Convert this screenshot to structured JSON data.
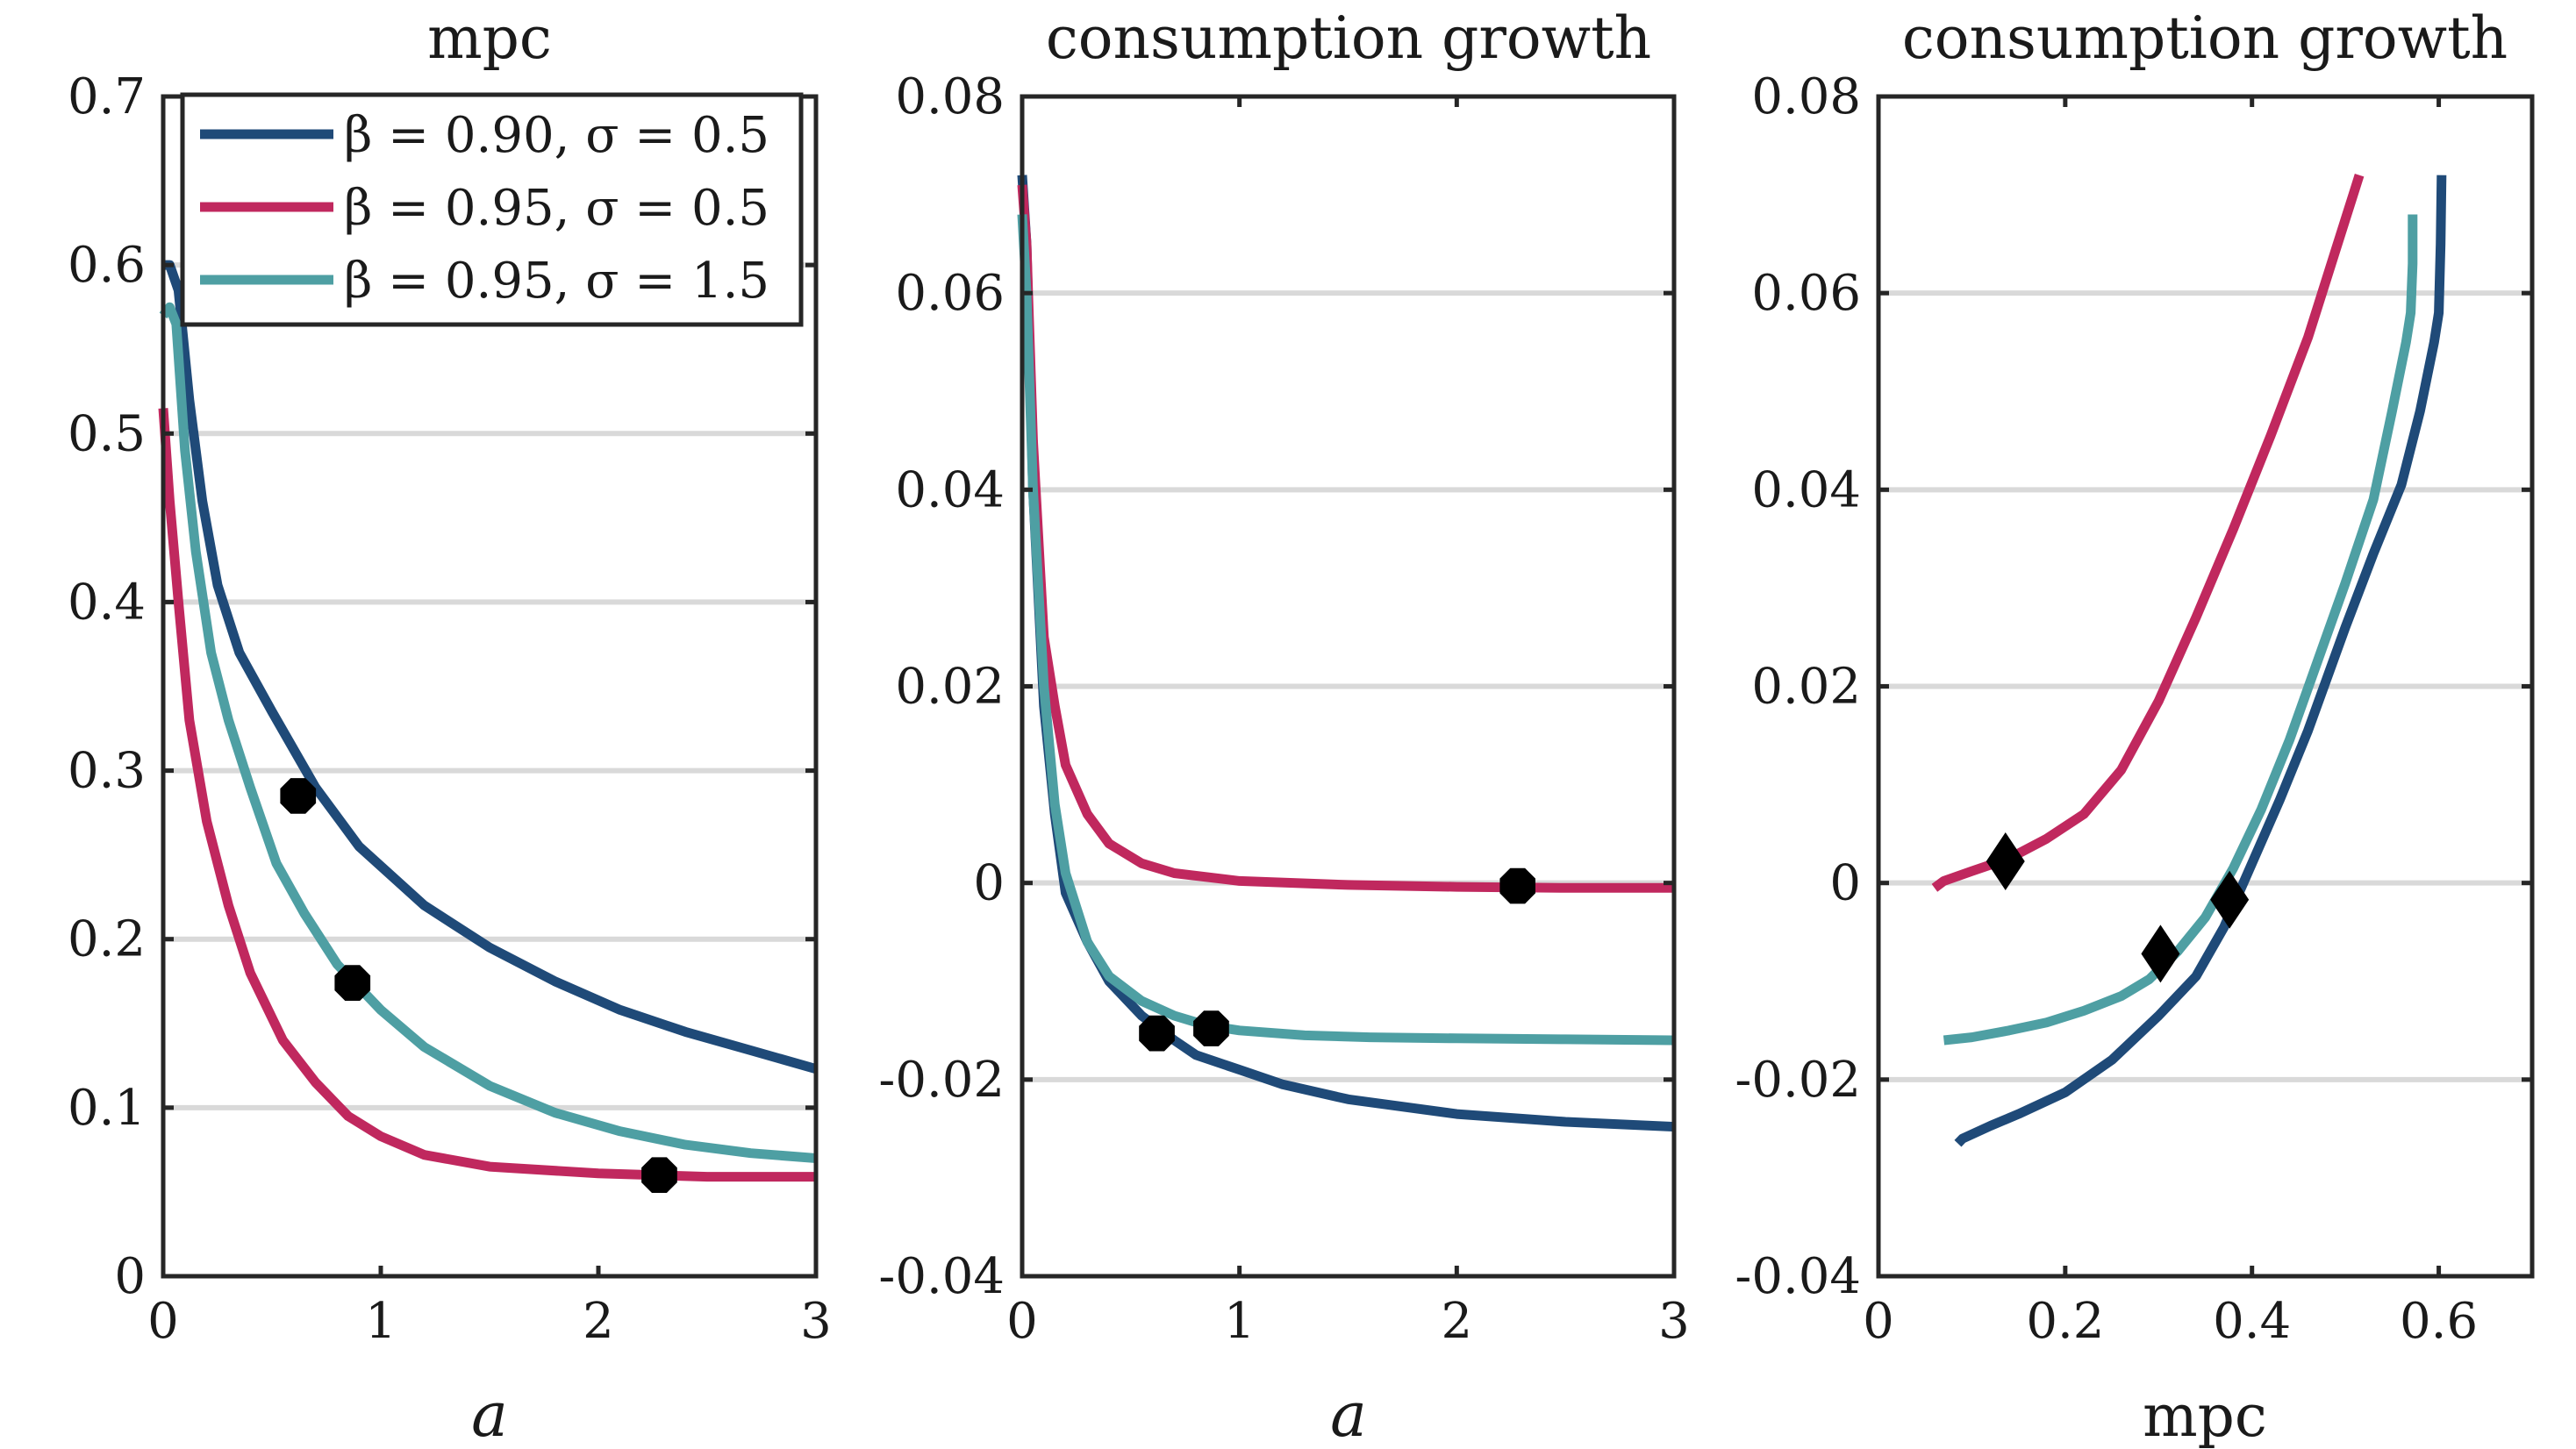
{
  "colors": {
    "navy": "#1f4a78",
    "crimson": "#c0285e",
    "teal": "#4e9fa3",
    "marker": "#000000",
    "grid": "#d9d9d9",
    "frame": "#262626"
  },
  "legend": {
    "placement": "top-right of first panel",
    "entries": [
      {
        "series": "beta090_sigma05",
        "label": "β = 0.90, σ = 0.5",
        "color": "#1f4a78"
      },
      {
        "series": "beta095_sigma05",
        "label": "β = 0.95, σ = 0.5",
        "color": "#c0285e"
      },
      {
        "series": "beta095_sigma15",
        "label": "β = 0.95, σ = 1.5",
        "color": "#4e9fa3"
      }
    ]
  },
  "chart_data": [
    {
      "type": "line",
      "title": "mpc",
      "xlabel": "a",
      "ylabel": "",
      "xlim": [
        0,
        3
      ],
      "ylim": [
        0,
        0.7
      ],
      "xticks": [
        0,
        1,
        2,
        3
      ],
      "xtick_labels": [
        "0",
        "1",
        "2",
        "3"
      ],
      "yticks": [
        0,
        0.1,
        0.2,
        0.3,
        0.4,
        0.5,
        0.6,
        0.7
      ],
      "ytick_labels": [
        "0",
        "0.1",
        "0.2",
        "0.3",
        "0.4",
        "0.5",
        "0.6",
        "0.7"
      ],
      "grid": "horizontal",
      "series": [
        {
          "id": "beta090_sigma05",
          "color": "#1f4a78",
          "points": [
            [
              0.0,
              0.6
            ],
            [
              0.03,
              0.6
            ],
            [
              0.07,
              0.585
            ],
            [
              0.12,
              0.52
            ],
            [
              0.18,
              0.46
            ],
            [
              0.25,
              0.41
            ],
            [
              0.35,
              0.37
            ],
            [
              0.5,
              0.335
            ],
            [
              0.7,
              0.29
            ],
            [
              0.9,
              0.255
            ],
            [
              1.2,
              0.22
            ],
            [
              1.5,
              0.195
            ],
            [
              1.8,
              0.175
            ],
            [
              2.1,
              0.158
            ],
            [
              2.4,
              0.145
            ],
            [
              2.7,
              0.134
            ],
            [
              3.0,
              0.123
            ]
          ],
          "markers": [
            [
              0.62,
              0.285
            ]
          ]
        },
        {
          "id": "beta095_sigma05",
          "color": "#c0285e",
          "points": [
            [
              0.0,
              0.515
            ],
            [
              0.03,
              0.46
            ],
            [
              0.07,
              0.4
            ],
            [
              0.12,
              0.33
            ],
            [
              0.2,
              0.27
            ],
            [
              0.3,
              0.22
            ],
            [
              0.4,
              0.18
            ],
            [
              0.55,
              0.14
            ],
            [
              0.7,
              0.115
            ],
            [
              0.85,
              0.095
            ],
            [
              1.0,
              0.083
            ],
            [
              1.2,
              0.072
            ],
            [
              1.5,
              0.065
            ],
            [
              2.0,
              0.061
            ],
            [
              2.5,
              0.059
            ],
            [
              3.0,
              0.059
            ]
          ],
          "markers": [
            [
              2.28,
              0.06
            ]
          ]
        },
        {
          "id": "beta095_sigma15",
          "color": "#4e9fa3",
          "points": [
            [
              0.0,
              0.57
            ],
            [
              0.03,
              0.575
            ],
            [
              0.06,
              0.565
            ],
            [
              0.1,
              0.49
            ],
            [
              0.15,
              0.43
            ],
            [
              0.22,
              0.37
            ],
            [
              0.3,
              0.33
            ],
            [
              0.4,
              0.29
            ],
            [
              0.52,
              0.245
            ],
            [
              0.65,
              0.215
            ],
            [
              0.8,
              0.185
            ],
            [
              1.0,
              0.158
            ],
            [
              1.2,
              0.136
            ],
            [
              1.5,
              0.113
            ],
            [
              1.8,
              0.097
            ],
            [
              2.1,
              0.086
            ],
            [
              2.4,
              0.078
            ],
            [
              2.7,
              0.073
            ],
            [
              3.0,
              0.07
            ]
          ],
          "markers": [
            [
              0.87,
              0.174
            ]
          ]
        }
      ]
    },
    {
      "type": "line",
      "title": "consumption growth",
      "xlabel": "a",
      "ylabel": "",
      "xlim": [
        0,
        3
      ],
      "ylim": [
        -0.04,
        0.08
      ],
      "xticks": [
        0,
        1,
        2,
        3
      ],
      "xtick_labels": [
        "0",
        "1",
        "2",
        "3"
      ],
      "yticks": [
        -0.04,
        -0.02,
        0,
        0.02,
        0.04,
        0.06,
        0.08
      ],
      "ytick_labels": [
        "-0.04",
        "-0.02",
        "0",
        "0.02",
        "0.04",
        "0.06",
        "0.08"
      ],
      "grid": "horizontal",
      "series": [
        {
          "id": "beta090_sigma05",
          "color": "#1f4a78",
          "points": [
            [
              0.0,
              0.072
            ],
            [
              0.02,
              0.065
            ],
            [
              0.05,
              0.04
            ],
            [
              0.1,
              0.018
            ],
            [
              0.15,
              0.007
            ],
            [
              0.2,
              -0.001
            ],
            [
              0.3,
              -0.006
            ],
            [
              0.4,
              -0.01
            ],
            [
              0.55,
              -0.0135
            ],
            [
              0.7,
              -0.016
            ],
            [
              0.8,
              -0.0175
            ],
            [
              1.0,
              -0.019
            ],
            [
              1.2,
              -0.0205
            ],
            [
              1.5,
              -0.022
            ],
            [
              2.0,
              -0.0235
            ],
            [
              2.5,
              -0.0243
            ],
            [
              3.0,
              -0.0248
            ]
          ],
          "markers": [
            [
              0.62,
              -0.0153
            ]
          ]
        },
        {
          "id": "beta095_sigma05",
          "color": "#c0285e",
          "points": [
            [
              0.0,
              0.071
            ],
            [
              0.02,
              0.065
            ],
            [
              0.05,
              0.045
            ],
            [
              0.1,
              0.025
            ],
            [
              0.15,
              0.018
            ],
            [
              0.2,
              0.012
            ],
            [
              0.3,
              0.007
            ],
            [
              0.4,
              0.004
            ],
            [
              0.55,
              0.002
            ],
            [
              0.7,
              0.001
            ],
            [
              1.0,
              0.0002
            ],
            [
              1.5,
              -0.0002
            ],
            [
              2.0,
              -0.0004
            ],
            [
              2.5,
              -0.0005
            ],
            [
              3.0,
              -0.0005
            ]
          ],
          "markers": [
            [
              2.28,
              -0.0003
            ]
          ]
        },
        {
          "id": "beta095_sigma15",
          "color": "#4e9fa3",
          "points": [
            [
              0.0,
              0.068
            ],
            [
              0.02,
              0.06
            ],
            [
              0.05,
              0.04
            ],
            [
              0.1,
              0.02
            ],
            [
              0.15,
              0.008
            ],
            [
              0.2,
              0.001
            ],
            [
              0.3,
              -0.006
            ],
            [
              0.4,
              -0.0095
            ],
            [
              0.55,
              -0.012
            ],
            [
              0.7,
              -0.0135
            ],
            [
              0.85,
              -0.0145
            ],
            [
              1.0,
              -0.015
            ],
            [
              1.3,
              -0.0155
            ],
            [
              1.6,
              -0.0157
            ],
            [
              2.0,
              -0.0158
            ],
            [
              2.5,
              -0.0159
            ],
            [
              3.0,
              -0.016
            ]
          ],
          "markers": [
            [
              0.87,
              -0.0148
            ]
          ]
        }
      ]
    },
    {
      "type": "line",
      "title": "consumption growth",
      "xlabel": "mpc",
      "ylabel": "",
      "xlim": [
        0,
        0.7
      ],
      "ylim": [
        -0.04,
        0.08
      ],
      "xticks": [
        0,
        0.2,
        0.4,
        0.6
      ],
      "xtick_labels": [
        "0",
        "0.2",
        "0.4",
        "0.6"
      ],
      "yticks": [
        -0.04,
        -0.02,
        0,
        0.02,
        0.04,
        0.06,
        0.08
      ],
      "ytick_labels": [
        "-0.04",
        "-0.02",
        "0",
        "0.02",
        "0.04",
        "0.06",
        "0.08"
      ],
      "grid": "horizontal",
      "series": [
        {
          "id": "beta090_sigma05",
          "color": "#1f4a78",
          "points": [
            [
              0.085,
              -0.0265
            ],
            [
              0.09,
              -0.026
            ],
            [
              0.12,
              -0.0247
            ],
            [
              0.15,
              -0.0235
            ],
            [
              0.2,
              -0.0213
            ],
            [
              0.25,
              -0.018
            ],
            [
              0.3,
              -0.0135
            ],
            [
              0.34,
              -0.0095
            ],
            [
              0.37,
              -0.0045
            ],
            [
              0.4,
              0.002
            ],
            [
              0.43,
              0.0085
            ],
            [
              0.46,
              0.0155
            ],
            [
              0.5,
              0.026
            ],
            [
              0.53,
              0.0335
            ],
            [
              0.56,
              0.0405
            ],
            [
              0.58,
              0.048
            ],
            [
              0.595,
              0.055
            ],
            [
              0.6,
              0.058
            ],
            [
              0.602,
              0.065
            ],
            [
              0.603,
              0.072
            ]
          ],
          "markers": [
            [
              0.376,
              -0.0017
            ]
          ]
        },
        {
          "id": "beta095_sigma05",
          "color": "#c0285e",
          "points": [
            [
              0.06,
              -0.0005
            ],
            [
              0.07,
              0.0002
            ],
            [
              0.1,
              0.0012
            ],
            [
              0.14,
              0.0025
            ],
            [
              0.18,
              0.0045
            ],
            [
              0.22,
              0.007
            ],
            [
              0.26,
              0.0115
            ],
            [
              0.3,
              0.0185
            ],
            [
              0.34,
              0.027
            ],
            [
              0.38,
              0.036
            ],
            [
              0.42,
              0.0455
            ],
            [
              0.46,
              0.0555
            ],
            [
              0.49,
              0.0645
            ],
            [
              0.51,
              0.0705
            ],
            [
              0.515,
              0.072
            ]
          ],
          "markers": [
            [
              0.136,
              0.0022
            ]
          ]
        },
        {
          "id": "beta095_sigma15",
          "color": "#4e9fa3",
          "points": [
            [
              0.07,
              -0.016
            ],
            [
              0.1,
              -0.0157
            ],
            [
              0.14,
              -0.015
            ],
            [
              0.18,
              -0.0142
            ],
            [
              0.22,
              -0.013
            ],
            [
              0.26,
              -0.0115
            ],
            [
              0.29,
              -0.0098
            ],
            [
              0.32,
              -0.007
            ],
            [
              0.35,
              -0.0035
            ],
            [
              0.38,
              0.0015
            ],
            [
              0.41,
              0.0075
            ],
            [
              0.44,
              0.0145
            ],
            [
              0.47,
              0.0225
            ],
            [
              0.5,
              0.0305
            ],
            [
              0.53,
              0.039
            ],
            [
              0.55,
              0.048
            ],
            [
              0.565,
              0.055
            ],
            [
              0.57,
              0.058
            ],
            [
              0.572,
              0.063
            ],
            [
              0.572,
              0.068
            ]
          ],
          "markers": [
            [
              0.302,
              -0.0072
            ]
          ]
        }
      ]
    }
  ]
}
